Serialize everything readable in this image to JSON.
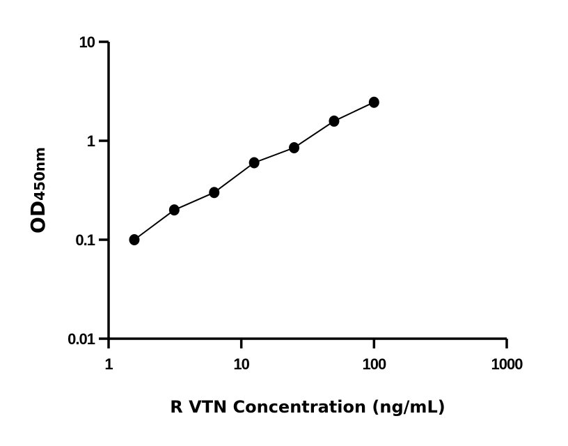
{
  "chart_data": {
    "type": "scatter",
    "title": "",
    "xlabel": "R VTN Concentration (ng/mL)",
    "ylabel": {
      "main": "OD",
      "sub": "450nm"
    },
    "xscale": "log",
    "yscale": "log",
    "xlim": [
      1,
      1000
    ],
    "ylim": [
      0.01,
      10
    ],
    "xticks": [
      "1",
      "10",
      "100",
      "1000"
    ],
    "yticks": [
      "0.01",
      "0.1",
      "1",
      "10"
    ],
    "grid": false,
    "fit_line": true,
    "colors": {
      "points": "#000000",
      "line": "#000000"
    },
    "points": [
      {
        "x": 1.5625,
        "y": 0.1
      },
      {
        "x": 3.125,
        "y": 0.2
      },
      {
        "x": 6.25,
        "y": 0.3
      },
      {
        "x": 12.5,
        "y": 0.6
      },
      {
        "x": 25,
        "y": 0.85
      },
      {
        "x": 50,
        "y": 1.58
      },
      {
        "x": 100,
        "y": 2.45
      }
    ]
  }
}
